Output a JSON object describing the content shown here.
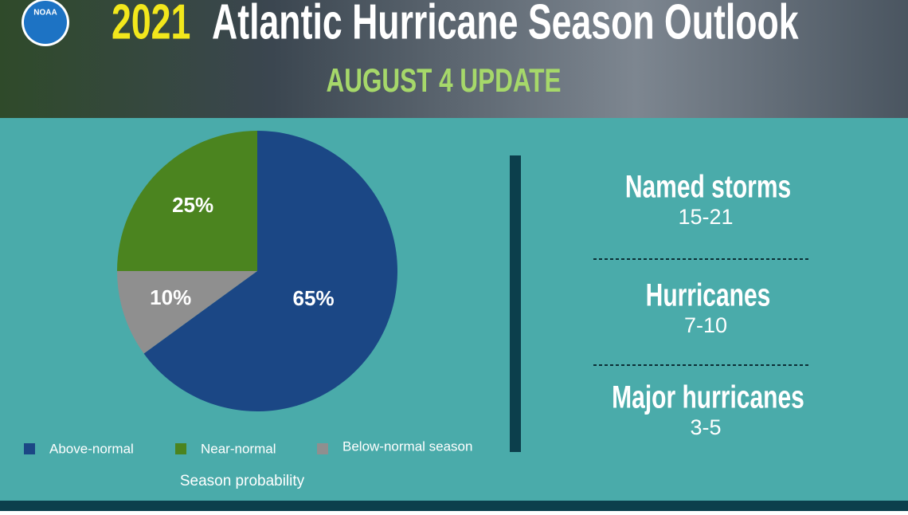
{
  "header": {
    "logo": "NOAA",
    "year": "2021",
    "title": "Atlantic Hurricane Season Outlook",
    "subtitle": "AUGUST 4 UPDATE"
  },
  "chart_data": {
    "type": "pie",
    "categories": [
      "Above-normal",
      "Near-normal",
      "Below-normal season"
    ],
    "values": [
      65,
      25,
      10
    ],
    "value_labels": [
      "65%",
      "25%",
      "10%"
    ],
    "colors": [
      "#1b4785",
      "#4b841f",
      "#8f8f8f"
    ],
    "caption": "Season probability"
  },
  "stats": [
    {
      "label": "Named storms",
      "value": "15-21"
    },
    {
      "label": "Hurricanes",
      "value": "7-10"
    },
    {
      "label": "Major hurricanes",
      "value": "3-5"
    }
  ]
}
